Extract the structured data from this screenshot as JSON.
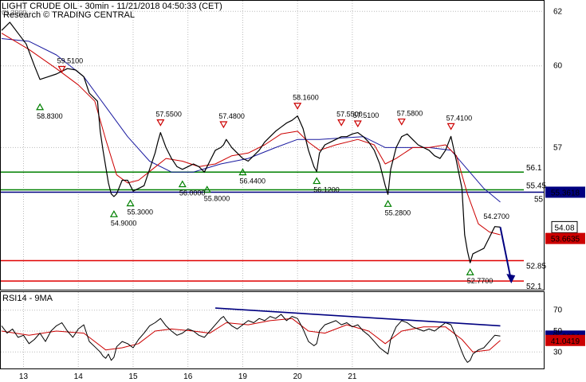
{
  "header": {
    "title": "LIGHT CRUDE OIL - 30min - 11/21/2018 04:50:33 (CET)",
    "subtitle": "Research © TRADING CENTRAL",
    "symbol": "CL3900"
  },
  "colors": {
    "price": "#000000",
    "ma_fast": "#cc0000",
    "ma_slow": "#1a1aa0",
    "support_green": "#008000",
    "pivot_blue": "#000080",
    "target_red": "#e00000",
    "rsi_trend": "#000080",
    "forecast_arrow": "#000080"
  },
  "chart_data": [
    {
      "type": "line",
      "name": "price",
      "title": "LIGHT CRUDE OIL - 30min - 11/21/2018 04:50:33 (CET)",
      "x_tick_labels": [
        "13",
        "14",
        "15",
        "16",
        "19",
        "20",
        "21"
      ],
      "y_tick_labels": [
        "62",
        "60",
        "57"
      ],
      "ylim": [
        51.9,
        62.3
      ],
      "grid": true,
      "price_path": [
        [
          0,
          61.3
        ],
        [
          3,
          61.6
        ],
        [
          6,
          61.2
        ],
        [
          9,
          60.8
        ],
        [
          12,
          60.0
        ],
        [
          14,
          59.5
        ],
        [
          17,
          59.6
        ],
        [
          20,
          59.7
        ],
        [
          22,
          59.8
        ],
        [
          24,
          59.9
        ],
        [
          27,
          59.85
        ],
        [
          30,
          59.6
        ],
        [
          32,
          59.0
        ],
        [
          34,
          58.8
        ],
        [
          35,
          58.7
        ],
        [
          36,
          57.6
        ],
        [
          37,
          56.9
        ],
        [
          38,
          56.3
        ],
        [
          39,
          55.7
        ],
        [
          40,
          55.3
        ],
        [
          41,
          55.2
        ],
        [
          42,
          55.3
        ],
        [
          44,
          55.8
        ],
        [
          46,
          55.8
        ],
        [
          48,
          55.4
        ],
        [
          50,
          55.5
        ],
        [
          52,
          55.6
        ],
        [
          54,
          56.2
        ],
        [
          56,
          56.8
        ],
        [
          57,
          57.2
        ],
        [
          58,
          57.55
        ],
        [
          60,
          57.0
        ],
        [
          62,
          56.6
        ],
        [
          64,
          56.3
        ],
        [
          66,
          56.2
        ],
        [
          68,
          56.3
        ],
        [
          70,
          56.4
        ],
        [
          72,
          56.3
        ],
        [
          74,
          56.1
        ],
        [
          76,
          56.5
        ],
        [
          78,
          56.9
        ],
        [
          80,
          57.0
        ],
        [
          81,
          57.1
        ],
        [
          82,
          57.3
        ],
        [
          84,
          57.0
        ],
        [
          86,
          56.8
        ],
        [
          88,
          56.6
        ],
        [
          90,
          56.5
        ],
        [
          92,
          56.7
        ],
        [
          94,
          56.9
        ],
        [
          96,
          57.2
        ],
        [
          98,
          57.4
        ],
        [
          100,
          57.6
        ],
        [
          102,
          57.75
        ],
        [
          104,
          57.9
        ],
        [
          106,
          58.0
        ],
        [
          108,
          58.16
        ],
        [
          110,
          57.7
        ],
        [
          112,
          56.9
        ],
        [
          114,
          56.3
        ],
        [
          115,
          56.12
        ],
        [
          116,
          56.8
        ],
        [
          118,
          57.1
        ],
        [
          120,
          57.2
        ],
        [
          122,
          57.3
        ],
        [
          124,
          57.4
        ],
        [
          126,
          57.4
        ],
        [
          128,
          57.5
        ],
        [
          130,
          57.55
        ],
        [
          132,
          57.4
        ],
        [
          134,
          57.2
        ],
        [
          136,
          56.9
        ],
        [
          138,
          56.4
        ],
        [
          140,
          55.6
        ],
        [
          141,
          55.28
        ],
        [
          142,
          56.2
        ],
        [
          144,
          57.0
        ],
        [
          146,
          57.4
        ],
        [
          148,
          57.5
        ],
        [
          150,
          57.3
        ],
        [
          152,
          57.1
        ],
        [
          154,
          57.0
        ],
        [
          156,
          56.9
        ],
        [
          158,
          56.7
        ],
        [
          160,
          56.6
        ],
        [
          162,
          56.9
        ],
        [
          164,
          57.41
        ],
        [
          166,
          56.5
        ],
        [
          168,
          55.5
        ],
        [
          169,
          53.8
        ],
        [
          170,
          53.2
        ],
        [
          171,
          52.77
        ],
        [
          172,
          53.1
        ],
        [
          174,
          53.2
        ],
        [
          176,
          53.3
        ],
        [
          178,
          53.7
        ],
        [
          180,
          54.1
        ],
        [
          182,
          54.08
        ]
      ],
      "ma_fast_path": [
        [
          0,
          61.2
        ],
        [
          10,
          60.6
        ],
        [
          20,
          59.9
        ],
        [
          28,
          59.3
        ],
        [
          34,
          58.7
        ],
        [
          38,
          57.3
        ],
        [
          42,
          56.0
        ],
        [
          46,
          55.7
        ],
        [
          50,
          55.8
        ],
        [
          55,
          56.2
        ],
        [
          60,
          56.6
        ],
        [
          66,
          56.5
        ],
        [
          72,
          56.3
        ],
        [
          78,
          56.4
        ],
        [
          84,
          56.7
        ],
        [
          90,
          56.8
        ],
        [
          96,
          57.1
        ],
        [
          102,
          57.5
        ],
        [
          108,
          57.6
        ],
        [
          112,
          57.2
        ],
        [
          116,
          56.9
        ],
        [
          122,
          57.1
        ],
        [
          130,
          57.3
        ],
        [
          136,
          57.1
        ],
        [
          140,
          56.4
        ],
        [
          144,
          56.6
        ],
        [
          150,
          57.0
        ],
        [
          156,
          57.0
        ],
        [
          162,
          57.1
        ],
        [
          166,
          56.7
        ],
        [
          170,
          55.3
        ],
        [
          174,
          54.2
        ],
        [
          178,
          53.9
        ],
        [
          182,
          53.8
        ]
      ],
      "ma_slow_path": [
        [
          0,
          61.0
        ],
        [
          10,
          60.9
        ],
        [
          20,
          60.4
        ],
        [
          30,
          59.6
        ],
        [
          38,
          58.5
        ],
        [
          46,
          57.4
        ],
        [
          54,
          56.5
        ],
        [
          62,
          56.1
        ],
        [
          70,
          56.1
        ],
        [
          80,
          56.4
        ],
        [
          90,
          56.6
        ],
        [
          100,
          57.0
        ],
        [
          108,
          57.3
        ],
        [
          116,
          57.3
        ],
        [
          124,
          57.35
        ],
        [
          132,
          57.4
        ],
        [
          140,
          57.0
        ],
        [
          148,
          57.0
        ],
        [
          156,
          57.0
        ],
        [
          164,
          56.9
        ],
        [
          170,
          56.2
        ],
        [
          176,
          55.5
        ],
        [
          182,
          55.0
        ]
      ],
      "swing_labels": [
        {
          "text": "59.5100",
          "x": 22,
          "value": 59.51,
          "marker": "high"
        },
        {
          "text": "58.8300",
          "x": 14,
          "value": 58.83,
          "marker": "low"
        },
        {
          "text": "54.9000",
          "x": 41,
          "value": 54.9,
          "marker": "low"
        },
        {
          "text": "55.3000",
          "x": 47,
          "value": 55.3,
          "marker": "low"
        },
        {
          "text": "57.5500",
          "x": 58,
          "value": 57.55,
          "marker": "high"
        },
        {
          "text": "56.0000",
          "x": 66,
          "value": 56.0,
          "marker": "low"
        },
        {
          "text": "57.4800",
          "x": 81,
          "value": 57.48,
          "marker": "high"
        },
        {
          "text": "55.8000",
          "x": 75,
          "value": 55.8,
          "marker": "low"
        },
        {
          "text": "56.4400",
          "x": 88,
          "value": 56.44,
          "marker": "low"
        },
        {
          "text": "58.1600",
          "x": 108,
          "value": 58.16,
          "marker": "high"
        },
        {
          "text": "56.1200",
          "x": 115,
          "value": 56.12,
          "marker": "low"
        },
        {
          "text": "57.5500",
          "x": 124,
          "value": 57.55,
          "marker": "high"
        },
        {
          "text": "57.5100",
          "x": 130,
          "value": 57.51,
          "marker": "high"
        },
        {
          "text": "55.2800",
          "x": 141,
          "value": 55.28,
          "marker": "low"
        },
        {
          "text": "57.5800",
          "x": 146,
          "value": 57.58,
          "marker": "high"
        },
        {
          "text": "57.4100",
          "x": 164,
          "value": 57.41,
          "marker": "high"
        },
        {
          "text": "52.7700",
          "x": 171,
          "value": 52.77,
          "marker": "low"
        }
      ],
      "extra_labels": [
        {
          "text": "54.2700",
          "x": 177,
          "value": 54.27
        }
      ],
      "horizontal_levels": [
        {
          "value": 56.1,
          "label": "56.1",
          "color": "#008000"
        },
        {
          "value": 55.45,
          "label": "55.45",
          "color": "#008000"
        },
        {
          "value": 55.3618,
          "label": "55.3618",
          "color": "#000080",
          "side_label": "55",
          "boxed": true
        },
        {
          "value": 52.85,
          "label": "52.85",
          "color": "#e00000"
        },
        {
          "value": 52.1,
          "label": "52.1",
          "color": "#e00000"
        }
      ],
      "last_price": {
        "value": 54.08,
        "label": "54.08"
      },
      "ma_value_box": {
        "value": 53.6635,
        "label": "53.6635"
      },
      "forecast_arrow": {
        "from": [
          182,
          54.08
        ],
        "to": [
          186,
          52.1
        ]
      }
    },
    {
      "type": "line",
      "name": "rsi",
      "title": "RSI14 - 9MA",
      "y_tick_labels": [
        "70",
        "50",
        "30"
      ],
      "ylim": [
        15,
        85
      ],
      "rsi_path": [
        [
          0,
          55
        ],
        [
          2,
          48
        ],
        [
          4,
          52
        ],
        [
          6,
          44
        ],
        [
          8,
          46
        ],
        [
          10,
          38
        ],
        [
          12,
          42
        ],
        [
          14,
          48
        ],
        [
          16,
          40
        ],
        [
          18,
          50
        ],
        [
          20,
          55
        ],
        [
          22,
          58
        ],
        [
          24,
          50
        ],
        [
          26,
          44
        ],
        [
          28,
          52
        ],
        [
          30,
          56
        ],
        [
          32,
          40
        ],
        [
          34,
          35
        ],
        [
          36,
          30
        ],
        [
          37,
          26
        ],
        [
          38,
          24
        ],
        [
          39,
          28
        ],
        [
          40,
          22
        ],
        [
          41,
          25
        ],
        [
          42,
          35
        ],
        [
          44,
          40
        ],
        [
          46,
          38
        ],
        [
          48,
          34
        ],
        [
          50,
          42
        ],
        [
          52,
          48
        ],
        [
          54,
          55
        ],
        [
          56,
          58
        ],
        [
          58,
          62
        ],
        [
          60,
          55
        ],
        [
          62,
          50
        ],
        [
          64,
          46
        ],
        [
          66,
          48
        ],
        [
          68,
          52
        ],
        [
          70,
          50
        ],
        [
          72,
          46
        ],
        [
          74,
          44
        ],
        [
          76,
          50
        ],
        [
          78,
          56
        ],
        [
          80,
          62
        ],
        [
          81,
          64
        ],
        [
          82,
          60
        ],
        [
          84,
          55
        ],
        [
          86,
          52
        ],
        [
          88,
          56
        ],
        [
          90,
          60
        ],
        [
          92,
          58
        ],
        [
          94,
          62
        ],
        [
          96,
          60
        ],
        [
          98,
          64
        ],
        [
          100,
          62
        ],
        [
          102,
          66
        ],
        [
          104,
          60
        ],
        [
          106,
          64
        ],
        [
          108,
          62
        ],
        [
          110,
          52
        ],
        [
          112,
          40
        ],
        [
          114,
          36
        ],
        [
          115,
          38
        ],
        [
          116,
          50
        ],
        [
          118,
          56
        ],
        [
          120,
          58
        ],
        [
          122,
          60
        ],
        [
          124,
          56
        ],
        [
          126,
          58
        ],
        [
          128,
          54
        ],
        [
          130,
          56
        ],
        [
          132,
          50
        ],
        [
          134,
          46
        ],
        [
          136,
          40
        ],
        [
          138,
          34
        ],
        [
          140,
          30
        ],
        [
          141,
          28
        ],
        [
          142,
          42
        ],
        [
          144,
          54
        ],
        [
          146,
          60
        ],
        [
          148,
          58
        ],
        [
          150,
          54
        ],
        [
          152,
          52
        ],
        [
          154,
          50
        ],
        [
          156,
          52
        ],
        [
          158,
          50
        ],
        [
          160,
          54
        ],
        [
          162,
          58
        ],
        [
          164,
          56
        ],
        [
          166,
          44
        ],
        [
          168,
          30
        ],
        [
          169,
          24
        ],
        [
          170,
          20
        ],
        [
          171,
          22
        ],
        [
          172,
          28
        ],
        [
          174,
          32
        ],
        [
          176,
          34
        ],
        [
          178,
          40
        ],
        [
          180,
          46
        ],
        [
          182,
          45.2
        ]
      ],
      "rsi_ma_path": [
        [
          0,
          50
        ],
        [
          10,
          46
        ],
        [
          20,
          50
        ],
        [
          30,
          48
        ],
        [
          38,
          32
        ],
        [
          44,
          34
        ],
        [
          50,
          38
        ],
        [
          56,
          50
        ],
        [
          62,
          52
        ],
        [
          70,
          50
        ],
        [
          76,
          48
        ],
        [
          82,
          58
        ],
        [
          90,
          56
        ],
        [
          98,
          60
        ],
        [
          106,
          62
        ],
        [
          112,
          50
        ],
        [
          118,
          48
        ],
        [
          126,
          56
        ],
        [
          134,
          50
        ],
        [
          140,
          38
        ],
        [
          146,
          50
        ],
        [
          154,
          54
        ],
        [
          162,
          54
        ],
        [
          168,
          42
        ],
        [
          172,
          30
        ],
        [
          178,
          32
        ],
        [
          182,
          41
        ]
      ],
      "trendline": [
        [
          78,
          72
        ],
        [
          182,
          55
        ]
      ],
      "last_value": {
        "value": 45.2004,
        "label": "45.2004"
      },
      "ma_value": {
        "value": 41.0419,
        "label": "41.0419"
      }
    }
  ]
}
